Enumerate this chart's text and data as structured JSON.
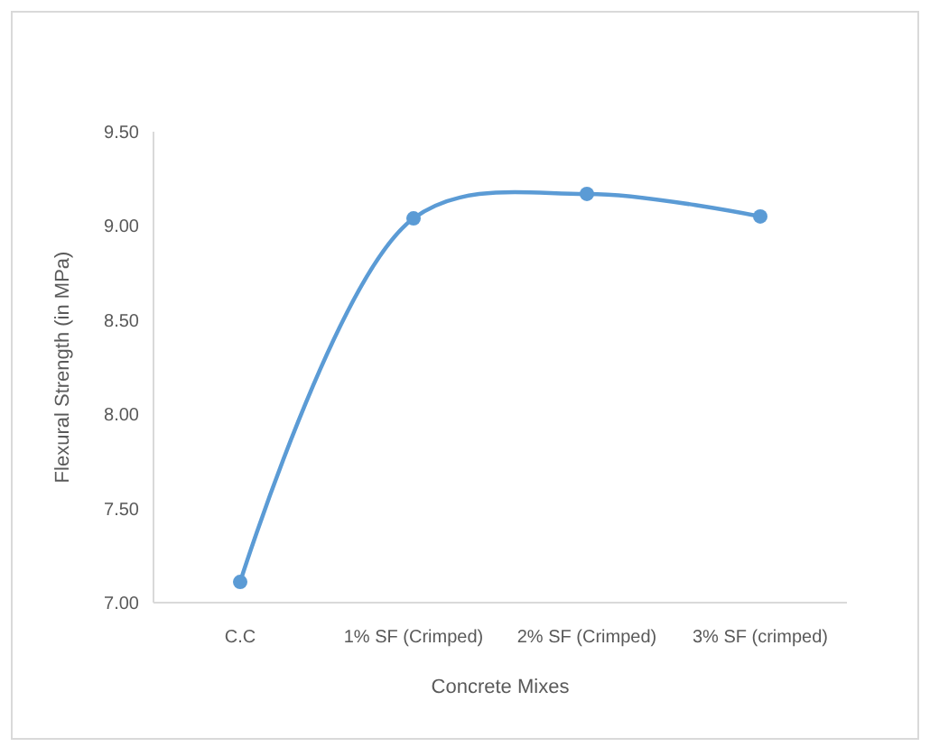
{
  "chart_data": {
    "type": "line",
    "xlabel": "Concrete Mixes",
    "ylabel": "Flexural Strength (in MPa)",
    "categories": [
      "C.C",
      "1% SF (Crimped)",
      "2% SF (Crimped)",
      "3% SF (crimped)"
    ],
    "series": [
      {
        "color": "#5b9bd5",
        "values": [
          7.11,
          9.04,
          9.17,
          9.05
        ]
      }
    ],
    "ylim": [
      7,
      9.5
    ],
    "yticks": [
      {
        "value": 7,
        "label": "7.00"
      },
      {
        "value": 7.5,
        "label": "7.50"
      },
      {
        "value": 8,
        "label": "8.00"
      },
      {
        "value": 8.5,
        "label": "8.50"
      },
      {
        "value": 9,
        "label": "9.00"
      },
      {
        "value": 9.5,
        "label": "9.50"
      }
    ],
    "grid": false,
    "marker": "circle",
    "line_style": "solid"
  }
}
